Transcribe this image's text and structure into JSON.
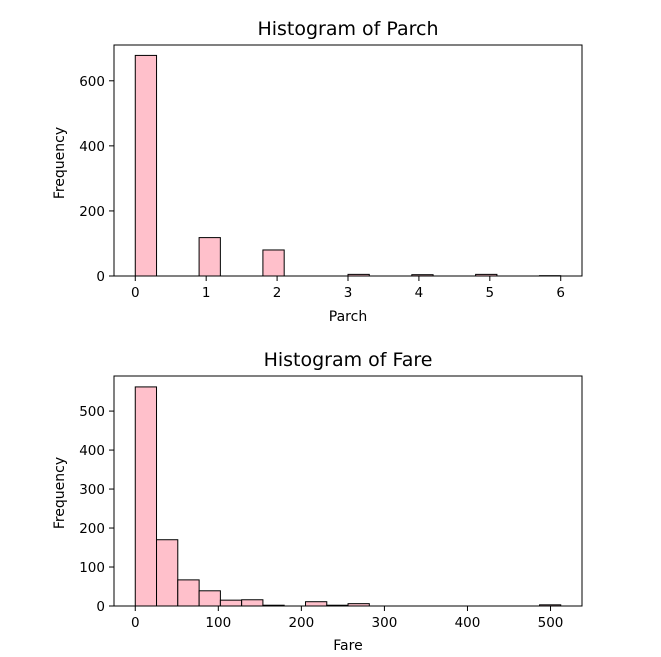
{
  "chart_data": [
    {
      "type": "bar",
      "title": "Histogram of Parch",
      "xlabel": "Parch",
      "ylabel": "Frequency",
      "xlim": [
        -0.3,
        6.3
      ],
      "ylim": [
        0,
        710
      ],
      "bar_color": "#FFC0CB",
      "edge_color": "#000000",
      "grid": false,
      "xticks": [
        0,
        1,
        2,
        3,
        4,
        5,
        6
      ],
      "yticks": [
        0,
        200,
        400,
        600
      ],
      "bins": [
        {
          "x0": 0.0,
          "x1": 0.3,
          "value": 678
        },
        {
          "x0": 0.3,
          "x1": 0.6,
          "value": 0
        },
        {
          "x0": 0.6,
          "x1": 0.9,
          "value": 0
        },
        {
          "x0": 0.9,
          "x1": 1.2,
          "value": 118
        },
        {
          "x0": 1.2,
          "x1": 1.5,
          "value": 0
        },
        {
          "x0": 1.5,
          "x1": 1.8,
          "value": 0
        },
        {
          "x0": 1.8,
          "x1": 2.1,
          "value": 80
        },
        {
          "x0": 2.1,
          "x1": 2.4,
          "value": 0
        },
        {
          "x0": 2.4,
          "x1": 2.7,
          "value": 0
        },
        {
          "x0": 2.7,
          "x1": 3.0,
          "value": 0
        },
        {
          "x0": 3.0,
          "x1": 3.3,
          "value": 5
        },
        {
          "x0": 3.3,
          "x1": 3.6,
          "value": 0
        },
        {
          "x0": 3.6,
          "x1": 3.9,
          "value": 0
        },
        {
          "x0": 3.9,
          "x1": 4.2,
          "value": 4
        },
        {
          "x0": 4.2,
          "x1": 4.5,
          "value": 0
        },
        {
          "x0": 4.5,
          "x1": 4.8,
          "value": 0
        },
        {
          "x0": 4.8,
          "x1": 5.1,
          "value": 5
        },
        {
          "x0": 5.1,
          "x1": 5.4,
          "value": 0
        },
        {
          "x0": 5.4,
          "x1": 5.7,
          "value": 0
        },
        {
          "x0": 5.7,
          "x1": 6.0,
          "value": 1
        }
      ]
    },
    {
      "type": "bar",
      "title": "Histogram of Fare",
      "xlabel": "Fare",
      "ylabel": "Frequency",
      "xlim": [
        -25.6,
        537.9
      ],
      "ylim": [
        0,
        590
      ],
      "bar_color": "#FFC0CB",
      "edge_color": "#000000",
      "grid": false,
      "xticks": [
        0,
        100,
        200,
        300,
        400,
        500
      ],
      "yticks": [
        0,
        100,
        200,
        300,
        400,
        500
      ],
      "bins": [
        {
          "x0": 0.0,
          "x1": 25.6,
          "value": 562
        },
        {
          "x0": 25.6,
          "x1": 51.2,
          "value": 170
        },
        {
          "x0": 51.2,
          "x1": 76.9,
          "value": 67
        },
        {
          "x0": 76.9,
          "x1": 102.5,
          "value": 39
        },
        {
          "x0": 102.5,
          "x1": 128.1,
          "value": 15
        },
        {
          "x0": 128.1,
          "x1": 153.7,
          "value": 16
        },
        {
          "x0": 153.7,
          "x1": 179.3,
          "value": 2
        },
        {
          "x0": 179.3,
          "x1": 205.0,
          "value": 0
        },
        {
          "x0": 205.0,
          "x1": 230.6,
          "value": 11
        },
        {
          "x0": 230.6,
          "x1": 256.2,
          "value": 2
        },
        {
          "x0": 256.2,
          "x1": 281.8,
          "value": 6
        },
        {
          "x0": 281.8,
          "x1": 307.4,
          "value": 0
        },
        {
          "x0": 307.4,
          "x1": 333.1,
          "value": 0
        },
        {
          "x0": 333.1,
          "x1": 358.7,
          "value": 0
        },
        {
          "x0": 358.7,
          "x1": 384.3,
          "value": 0
        },
        {
          "x0": 384.3,
          "x1": 409.9,
          "value": 0
        },
        {
          "x0": 409.9,
          "x1": 435.5,
          "value": 0
        },
        {
          "x0": 435.5,
          "x1": 461.2,
          "value": 0
        },
        {
          "x0": 461.2,
          "x1": 486.8,
          "value": 0
        },
        {
          "x0": 486.8,
          "x1": 512.3,
          "value": 3
        }
      ]
    }
  ]
}
